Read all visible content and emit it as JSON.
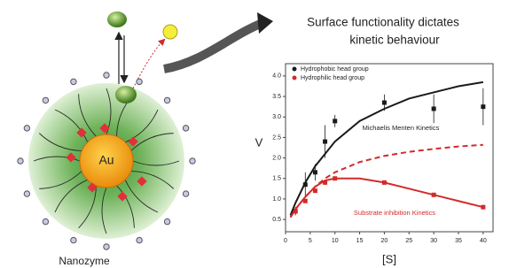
{
  "headline": [
    "Surface functionality dictates",
    "kinetic behaviour"
  ],
  "diagram": {
    "core_label": "Au",
    "caption": "Nanozyme"
  },
  "chart_data": {
    "type": "scatter",
    "x_label": "[S]",
    "y_label": "V",
    "xlim": [
      0,
      42
    ],
    "ylim": [
      0.2,
      4.3
    ],
    "xticks": [
      0,
      5,
      10,
      15,
      20,
      25,
      30,
      35,
      40
    ],
    "yticks": [
      {
        "value": 0.5,
        "label": "0.5"
      },
      {
        "value": 1,
        "label": "1.0"
      },
      {
        "value": 1.5,
        "label": "1.5"
      },
      {
        "value": 2,
        "label": "2.0"
      },
      {
        "value": 2.5,
        "label": "2.5"
      },
      {
        "value": 3,
        "label": "3.0"
      },
      {
        "value": 3.5,
        "label": "3.5"
      },
      {
        "value": 4,
        "label": "4.0"
      }
    ],
    "annotations": [
      "Michaelis Menten Kinetics",
      "Substrate inhibition Kinetics"
    ],
    "series": [
      {
        "name": "Hydrophobic head group",
        "color": "#1a1a1a",
        "x": [
          2,
          4,
          6,
          8,
          10,
          20,
          30,
          40
        ],
        "values": [
          0.7,
          1.35,
          1.65,
          2.4,
          2.9,
          3.35,
          3.2,
          3.25
        ],
        "errors": [
          0.1,
          0.3,
          0.2,
          0.4,
          0.15,
          0.2,
          0.35,
          0.45
        ]
      },
      {
        "name": "Hydrophilic head group",
        "color": "#d42a2a",
        "x": [
          2,
          4,
          6,
          8,
          10,
          20,
          30,
          40
        ],
        "values": [
          0.7,
          0.95,
          1.2,
          1.4,
          1.5,
          1.4,
          1.1,
          0.8
        ]
      },
      {
        "type": "line",
        "color": "#1a1a1a",
        "x": [
          1,
          2,
          4,
          6,
          8,
          10,
          15,
          20,
          25,
          30,
          35,
          40
        ],
        "values": [
          0.6,
          0.9,
          1.4,
          1.8,
          2.1,
          2.4,
          2.9,
          3.2,
          3.45,
          3.6,
          3.75,
          3.85
        ]
      },
      {
        "type": "line",
        "style": "dashed",
        "color": "#d42a2a",
        "x": [
          1,
          2,
          4,
          6,
          8,
          10,
          15,
          20,
          25,
          30,
          35,
          40
        ],
        "values": [
          0.55,
          0.75,
          1.05,
          1.3,
          1.5,
          1.65,
          1.9,
          2.05,
          2.15,
          2.22,
          2.28,
          2.32
        ]
      },
      {
        "type": "line",
        "color": "#d42a2a",
        "x": [
          1,
          2,
          4,
          6,
          8,
          10,
          15,
          20,
          25,
          30,
          35,
          40
        ],
        "values": [
          0.55,
          0.75,
          1.05,
          1.3,
          1.45,
          1.5,
          1.5,
          1.4,
          1.25,
          1.1,
          0.95,
          0.8
        ]
      }
    ]
  }
}
